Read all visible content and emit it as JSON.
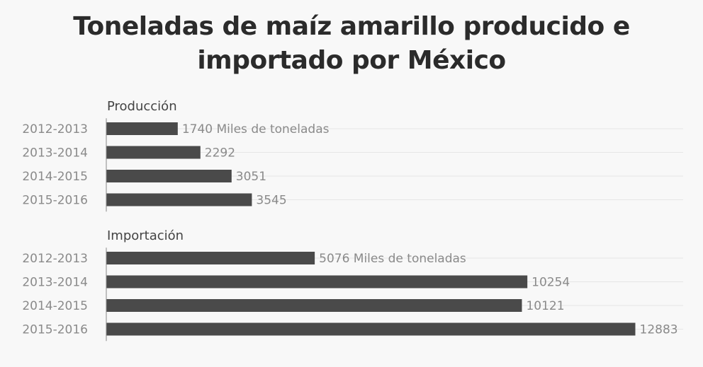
{
  "title": "Toneladas de maíz amarillo producido e importado por México",
  "chart_data": [
    {
      "type": "bar",
      "orientation": "horizontal",
      "title": "Producción",
      "categories": [
        "2012-2013",
        "2013-2014",
        "2014-2015",
        "2015-2016"
      ],
      "values": [
        1740,
        2292,
        3051,
        3545
      ],
      "value_labels": [
        "1740 Miles de toneladas",
        "2292",
        "3051",
        "3545"
      ],
      "unit": "Miles de toneladas",
      "xlim": [
        0,
        14000
      ],
      "grid": true,
      "bar_color": "#4a4a4a"
    },
    {
      "type": "bar",
      "orientation": "horizontal",
      "title": "Importación",
      "categories": [
        "2012-2013",
        "2013-2014",
        "2014-2015",
        "2015-2016"
      ],
      "values": [
        5076,
        10254,
        10121,
        12883
      ],
      "value_labels": [
        "5076 Miles de toneladas",
        "10254",
        "10121",
        "12883"
      ],
      "unit": "Miles de toneladas",
      "xlim": [
        0,
        14000
      ],
      "grid": true,
      "bar_color": "#4a4a4a"
    }
  ]
}
